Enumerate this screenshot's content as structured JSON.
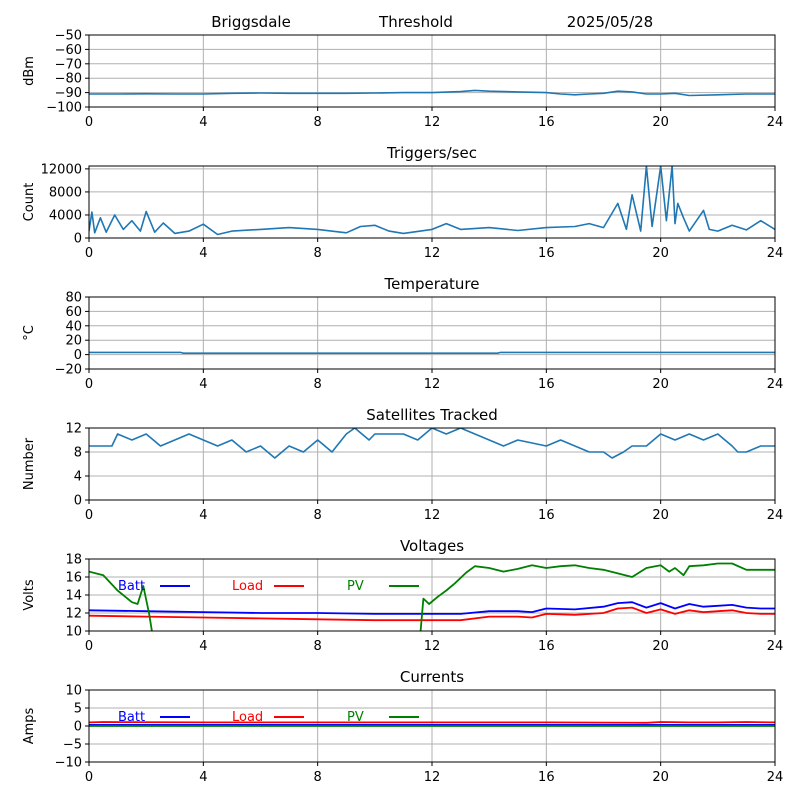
{
  "header": {
    "site": "Briggsdale",
    "mode": "Threshold",
    "date": "2025/05/28"
  },
  "colors": {
    "default_series": "#1f77b4",
    "batt": "#0000ff",
    "load": "#ff0000",
    "pv": "#008000",
    "grid": "#b0b0b0"
  },
  "chart_data": [
    {
      "type": "line",
      "title": "",
      "ylabel": "dBm",
      "xlim": [
        0,
        24
      ],
      "ylim": [
        -100,
        -50
      ],
      "xticks": [
        "0",
        "4",
        "8",
        "12",
        "16",
        "20",
        "24"
      ],
      "yticks": [
        "-50",
        "-60",
        "-70",
        "-80",
        "-90",
        "-100"
      ],
      "grid": true,
      "series": [
        {
          "color": "#1f77b4",
          "x": [
            0,
            1,
            2,
            3,
            4,
            5,
            6,
            7,
            8,
            9,
            10,
            11,
            12,
            13,
            13.5,
            14,
            15,
            16,
            16.5,
            17,
            17.5,
            18,
            18.5,
            19,
            19.5,
            20,
            20.5,
            21,
            22,
            23,
            24
          ],
          "y": [
            -91,
            -91,
            -90.8,
            -91,
            -91,
            -90.5,
            -90.3,
            -90.5,
            -90.5,
            -90.5,
            -90.3,
            -90,
            -90,
            -89.3,
            -88.5,
            -89,
            -89.5,
            -90,
            -91,
            -91.5,
            -91,
            -90.5,
            -89,
            -89.5,
            -91,
            -91,
            -90.5,
            -92,
            -91.5,
            -91,
            -91
          ]
        }
      ]
    },
    {
      "type": "line",
      "title": "Triggers/sec",
      "ylabel": "Count",
      "xlim": [
        0,
        24
      ],
      "ylim": [
        0,
        12500
      ],
      "xticks": [
        "0",
        "4",
        "8",
        "12",
        "16",
        "20",
        "24"
      ],
      "yticks": [
        "0",
        "4000",
        "8000",
        "12000"
      ],
      "grid": true,
      "series": [
        {
          "color": "#1f77b4",
          "x": [
            0,
            0.1,
            0.2,
            0.4,
            0.6,
            0.9,
            1.2,
            1.5,
            1.8,
            2.0,
            2.3,
            2.6,
            3.0,
            3.5,
            4.0,
            4.5,
            5.0,
            6.0,
            7.0,
            8.0,
            9.0,
            9.5,
            10.0,
            10.5,
            11.0,
            12.0,
            12.5,
            13.0,
            14.0,
            15.0,
            16.0,
            17.0,
            17.5,
            18.0,
            18.5,
            18.8,
            19.0,
            19.3,
            19.5,
            19.7,
            20.0,
            20.2,
            20.4,
            20.5,
            20.6,
            20.8,
            21.0,
            21.5,
            21.7,
            22.0,
            22.5,
            23.0,
            23.5,
            24
          ],
          "y": [
            1200,
            4500,
            900,
            3500,
            1000,
            4000,
            1500,
            3000,
            1200,
            4600,
            1000,
            2600,
            800,
            1200,
            2400,
            600,
            1200,
            1500,
            1800,
            1500,
            900,
            2000,
            2200,
            1200,
            800,
            1500,
            2500,
            1500,
            1800,
            1300,
            1800,
            2000,
            2500,
            1800,
            6000,
            1500,
            7500,
            1200,
            12500,
            2000,
            12500,
            3000,
            12500,
            2500,
            6000,
            3500,
            1200,
            4800,
            1500,
            1200,
            2200,
            1400,
            3000,
            1500
          ]
        }
      ]
    },
    {
      "type": "line",
      "title": "Temperature",
      "ylabel": "°C",
      "xlim": [
        0,
        24
      ],
      "ylim": [
        -20,
        80
      ],
      "xticks": [
        "0",
        "4",
        "8",
        "12",
        "16",
        "20",
        "24"
      ],
      "yticks": [
        "80",
        "60",
        "40",
        "20",
        "0",
        "-20"
      ],
      "grid": true,
      "series": [
        {
          "color": "#1f77b4",
          "x": [
            0,
            3.2,
            3.3,
            14.3,
            14.4,
            24
          ],
          "y": [
            3,
            3,
            2,
            2,
            3,
            3
          ]
        }
      ]
    },
    {
      "type": "line",
      "title": "Satellites Tracked",
      "ylabel": "Number",
      "xlim": [
        0,
        24
      ],
      "ylim": [
        0,
        12
      ],
      "xticks": [
        "0",
        "4",
        "8",
        "12",
        "16",
        "20",
        "24"
      ],
      "yticks": [
        "12",
        "8",
        "4",
        "0"
      ],
      "grid": true,
      "series": [
        {
          "color": "#1f77b4",
          "x": [
            0,
            0.8,
            1.0,
            1.5,
            2.0,
            2.5,
            3.0,
            3.5,
            4.0,
            4.5,
            5.0,
            5.5,
            6.0,
            6.5,
            7.0,
            7.5,
            8.0,
            8.5,
            9.0,
            9.3,
            9.8,
            10.0,
            11.0,
            11.5,
            12.0,
            12.5,
            13.0,
            13.5,
            14.0,
            14.5,
            15.0,
            16.0,
            16.5,
            17.0,
            17.5,
            18.0,
            18.3,
            18.7,
            19.0,
            19.5,
            20.0,
            20.5,
            21.0,
            21.5,
            22.0,
            22.5,
            22.7,
            23.0,
            23.5,
            24
          ],
          "y": [
            9,
            9,
            11,
            10,
            11,
            9,
            10,
            11,
            10,
            9,
            10,
            8,
            9,
            7,
            9,
            8,
            10,
            8,
            11,
            12,
            10,
            11,
            11,
            10,
            12,
            11,
            12,
            11,
            10,
            9,
            10,
            9,
            10,
            9,
            8,
            8,
            7,
            8,
            9,
            9,
            11,
            10,
            11,
            10,
            11,
            9,
            8,
            8,
            9,
            9
          ]
        }
      ]
    },
    {
      "type": "line",
      "title": "Voltages",
      "ylabel": "Volts",
      "xlim": [
        0,
        24
      ],
      "ylim": [
        10,
        18
      ],
      "xticks": [
        "0",
        "4",
        "8",
        "12",
        "16",
        "20",
        "24"
      ],
      "yticks": [
        "18",
        "16",
        "14",
        "12",
        "10"
      ],
      "grid": true,
      "legend": [
        "Batt",
        "Load",
        "PV"
      ],
      "series": [
        {
          "name": "Batt",
          "color": "#0000ff",
          "x": [
            0,
            2,
            4,
            6,
            8,
            10,
            12,
            13,
            14,
            15,
            15.5,
            16,
            17,
            18,
            18.5,
            19,
            19.5,
            20,
            20.5,
            21,
            21.5,
            22,
            22.5,
            23,
            23.5,
            24
          ],
          "y": [
            12.3,
            12.2,
            12.1,
            12.0,
            12.0,
            11.9,
            11.9,
            11.9,
            12.2,
            12.2,
            12.1,
            12.5,
            12.4,
            12.7,
            13.1,
            13.2,
            12.6,
            13.1,
            12.5,
            13.0,
            12.7,
            12.8,
            12.9,
            12.6,
            12.5,
            12.5
          ]
        },
        {
          "name": "Load",
          "color": "#ff0000",
          "x": [
            0,
            2,
            4,
            6,
            8,
            10,
            12,
            13,
            14,
            15,
            15.5,
            16,
            17,
            18,
            18.5,
            19,
            19.5,
            20,
            20.5,
            21,
            21.5,
            22,
            22.5,
            23,
            23.5,
            24
          ],
          "y": [
            11.7,
            11.6,
            11.5,
            11.4,
            11.3,
            11.2,
            11.2,
            11.2,
            11.6,
            11.6,
            11.5,
            11.9,
            11.8,
            12.0,
            12.5,
            12.6,
            12.0,
            12.4,
            11.9,
            12.3,
            12.1,
            12.2,
            12.3,
            12.0,
            11.9,
            11.9
          ]
        },
        {
          "name": "PV",
          "color": "#008000",
          "x": [
            0,
            0.5,
            1.0,
            1.5,
            1.7,
            1.9,
            2.1,
            2.2,
            null,
            11.6,
            11.7,
            11.9,
            12.2,
            12.5,
            12.8,
            13.2,
            13.5,
            14.0,
            14.5,
            15.0,
            15.5,
            16.0,
            16.5,
            17.0,
            17.5,
            18.0,
            18.5,
            19.0,
            19.5,
            20.0,
            20.3,
            20.5,
            20.8,
            21.0,
            21.5,
            22.0,
            22.5,
            23.0,
            23.5,
            24
          ],
          "y": [
            16.6,
            16.2,
            14.5,
            13.2,
            13.0,
            15.0,
            12.0,
            10,
            null,
            10,
            13.6,
            13.0,
            13.8,
            14.5,
            15.3,
            16.5,
            17.2,
            17.0,
            16.6,
            16.9,
            17.3,
            17.0,
            17.2,
            17.3,
            17.0,
            16.8,
            16.4,
            16.0,
            17.0,
            17.3,
            16.6,
            17.0,
            16.2,
            17.2,
            17.3,
            17.5,
            17.5,
            16.8,
            16.8,
            16.8
          ]
        }
      ]
    },
    {
      "type": "line",
      "title": "Currents",
      "ylabel": "Amps",
      "xlim": [
        0,
        24
      ],
      "ylim": [
        -10,
        10
      ],
      "xticks": [
        "0",
        "4",
        "8",
        "12",
        "16",
        "20",
        "24"
      ],
      "yticks": [
        "10",
        "5",
        "0",
        "-5",
        "-10"
      ],
      "grid": true,
      "legend": [
        "Batt",
        "Load",
        "PV"
      ],
      "series": [
        {
          "name": "Batt",
          "color": "#0000ff",
          "x": [
            0,
            24
          ],
          "y": [
            0.3,
            0.3
          ]
        },
        {
          "name": "Load",
          "color": "#ff0000",
          "x": [
            0,
            0.5,
            4,
            8,
            12,
            16,
            19.5,
            20,
            21,
            22,
            23,
            24
          ],
          "y": [
            1.0,
            1.1,
            1.0,
            1.0,
            1.0,
            1.0,
            0.9,
            1.1,
            1.0,
            1.0,
            1.1,
            1.0
          ]
        },
        {
          "name": "PV",
          "color": "#008000",
          "x": [
            0,
            24
          ],
          "y": [
            0,
            0
          ]
        }
      ]
    }
  ]
}
